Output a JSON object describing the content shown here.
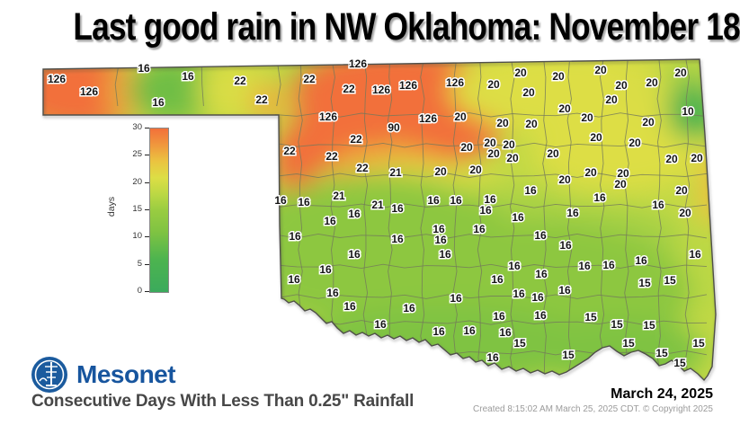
{
  "title": "Last good rain in NW Oklahoma: November 18",
  "branding": {
    "logo_text": "Mesonet",
    "caption": "Consecutive Days With Less Than 0.25\" Rainfall"
  },
  "footer": {
    "date": "March 24, 2025",
    "created": "Created 8:15:02 AM March 25, 2025 CDT. © Copyright 2025"
  },
  "colors": {
    "brand_blue": "#17559E",
    "scale_low_green": "#3BAA5C",
    "scale_mid_yellow": "#D9DD45",
    "scale_high_orange": "#F2703A"
  },
  "legend": {
    "title": "days",
    "min": 0,
    "max": 30,
    "ticks": [
      0,
      5,
      10,
      15,
      20,
      25,
      30
    ],
    "gradient": [
      {
        "v": 0,
        "c": "#3BAA5C"
      },
      {
        "v": 6,
        "c": "#4DB44F"
      },
      {
        "v": 11,
        "c": "#7FC342"
      },
      {
        "v": 15,
        "c": "#99CC41"
      },
      {
        "v": 18,
        "c": "#BCD844"
      },
      {
        "v": 21,
        "c": "#DDDE45"
      },
      {
        "v": 24,
        "c": "#EBC340"
      },
      {
        "v": 27,
        "c": "#F0973D"
      },
      {
        "v": 30,
        "c": "#F2703A"
      }
    ]
  },
  "map_data": {
    "type": "choropleth-map",
    "region": "Oklahoma",
    "metric": "Consecutive days with less than 0.25 inch rainfall",
    "unit": "days",
    "values_format": "[days, x_px, y_px]",
    "values": [
      [
        126,
        63,
        88
      ],
      [
        126,
        99,
        102
      ],
      [
        16,
        160,
        76
      ],
      [
        16,
        209,
        85
      ],
      [
        16,
        176,
        114
      ],
      [
        22,
        267,
        90
      ],
      [
        22,
        291,
        111
      ],
      [
        22,
        344,
        88
      ],
      [
        126,
        398,
        71
      ],
      [
        22,
        388,
        99
      ],
      [
        126,
        424,
        100
      ],
      [
        126,
        454,
        95
      ],
      [
        126,
        506,
        92
      ],
      [
        126,
        365,
        130
      ],
      [
        90,
        438,
        142
      ],
      [
        126,
        476,
        132
      ],
      [
        20,
        512,
        130
      ],
      [
        22,
        396,
        155
      ],
      [
        22,
        322,
        168
      ],
      [
        22,
        369,
        174
      ],
      [
        22,
        403,
        187
      ],
      [
        21,
        440,
        192
      ],
      [
        20,
        490,
        191
      ],
      [
        20,
        549,
        94
      ],
      [
        20,
        579,
        81
      ],
      [
        20,
        621,
        85
      ],
      [
        20,
        668,
        78
      ],
      [
        20,
        691,
        95
      ],
      [
        20,
        725,
        92
      ],
      [
        20,
        757,
        81
      ],
      [
        20,
        588,
        103
      ],
      [
        20,
        680,
        111
      ],
      [
        10,
        765,
        124
      ],
      [
        20,
        628,
        121
      ],
      [
        20,
        653,
        131
      ],
      [
        20,
        559,
        137
      ],
      [
        20,
        591,
        138
      ],
      [
        20,
        721,
        136
      ],
      [
        20,
        519,
        164
      ],
      [
        20,
        545,
        159
      ],
      [
        20,
        566,
        161
      ],
      [
        20,
        549,
        171
      ],
      [
        20,
        570,
        176
      ],
      [
        20,
        615,
        171
      ],
      [
        20,
        663,
        153
      ],
      [
        20,
        706,
        159
      ],
      [
        20,
        747,
        177
      ],
      [
        20,
        775,
        176
      ],
      [
        20,
        529,
        189
      ],
      [
        20,
        628,
        200
      ],
      [
        20,
        657,
        192
      ],
      [
        20,
        693,
        193
      ],
      [
        20,
        690,
        205
      ],
      [
        20,
        758,
        212
      ],
      [
        20,
        762,
        237
      ],
      [
        16,
        312,
        223
      ],
      [
        16,
        338,
        225
      ],
      [
        21,
        377,
        218
      ],
      [
        21,
        420,
        228
      ],
      [
        16,
        442,
        232
      ],
      [
        16,
        394,
        238
      ],
      [
        16,
        367,
        246
      ],
      [
        16,
        328,
        263
      ],
      [
        16,
        482,
        223
      ],
      [
        16,
        507,
        223
      ],
      [
        16,
        545,
        222
      ],
      [
        16,
        540,
        234
      ],
      [
        16,
        590,
        212
      ],
      [
        16,
        667,
        220
      ],
      [
        16,
        732,
        228
      ],
      [
        16,
        637,
        237
      ],
      [
        16,
        576,
        242
      ],
      [
        16,
        442,
        266
      ],
      [
        16,
        490,
        267
      ],
      [
        16,
        488,
        255
      ],
      [
        16,
        533,
        255
      ],
      [
        16,
        601,
        262
      ],
      [
        16,
        629,
        273
      ],
      [
        16,
        394,
        283
      ],
      [
        16,
        495,
        283
      ],
      [
        16,
        362,
        300
      ],
      [
        16,
        327,
        311
      ],
      [
        16,
        650,
        296
      ],
      [
        16,
        677,
        295
      ],
      [
        16,
        713,
        290
      ],
      [
        16,
        773,
        283
      ],
      [
        16,
        572,
        296
      ],
      [
        16,
        602,
        305
      ],
      [
        16,
        628,
        323
      ],
      [
        16,
        370,
        326
      ],
      [
        16,
        389,
        341
      ],
      [
        16,
        423,
        361
      ],
      [
        16,
        455,
        343
      ],
      [
        16,
        507,
        332
      ],
      [
        16,
        488,
        369
      ],
      [
        16,
        522,
        368
      ],
      [
        16,
        553,
        311
      ],
      [
        16,
        577,
        327
      ],
      [
        16,
        598,
        331
      ],
      [
        16,
        555,
        352
      ],
      [
        16,
        562,
        370
      ],
      [
        16,
        601,
        351
      ],
      [
        16,
        548,
        398
      ],
      [
        15,
        717,
        315
      ],
      [
        15,
        745,
        312
      ],
      [
        15,
        657,
        353
      ],
      [
        15,
        686,
        361
      ],
      [
        15,
        722,
        362
      ],
      [
        15,
        578,
        382
      ],
      [
        15,
        632,
        395
      ],
      [
        15,
        699,
        382
      ],
      [
        15,
        736,
        393
      ],
      [
        15,
        756,
        404
      ],
      [
        15,
        777,
        382
      ]
    ]
  }
}
